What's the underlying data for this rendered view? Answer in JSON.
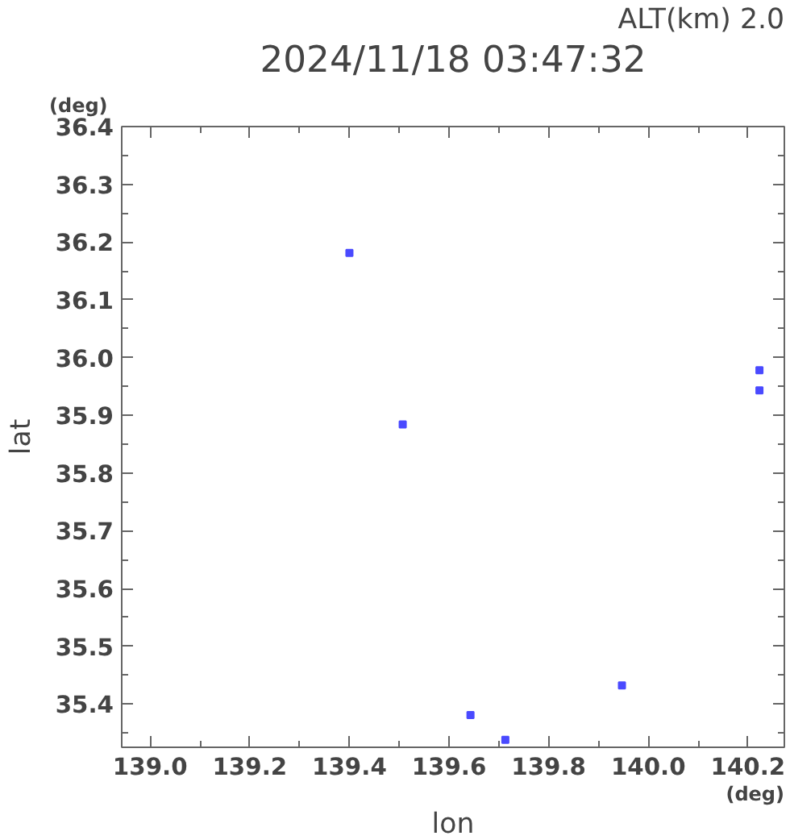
{
  "chart_data": {
    "type": "scatter",
    "title": "2024/11/18 03:47:32",
    "subtitle": "ALT(km) 2.0",
    "xlabel": "lon",
    "ylabel": "lat",
    "annotations": [
      "(deg)",
      "(deg)"
    ],
    "x": [
      139.4,
      139.507,
      140.223,
      140.223,
      139.947,
      139.643,
      139.713
    ],
    "series": [
      {
        "color": "#4a4aff",
        "values": [
          36.181,
          35.884,
          35.978,
          35.943,
          35.432,
          35.381,
          35.338
        ]
      }
    ],
    "marker": "square",
    "grid": false,
    "xlim": [
      138.943,
      140.273
    ],
    "ylim": [
      35.325,
      36.4
    ],
    "xticks": [
      {
        "value": 139.0,
        "label": "139.0"
      },
      {
        "value": 139.1,
        "label": null
      },
      {
        "value": 139.2,
        "label": "139.2"
      },
      {
        "value": 139.3,
        "label": null
      },
      {
        "value": 139.4,
        "label": "139.4"
      },
      {
        "value": 139.5,
        "label": null
      },
      {
        "value": 139.6,
        "label": "139.6"
      },
      {
        "value": 139.7,
        "label": null
      },
      {
        "value": 139.8,
        "label": "139.8"
      },
      {
        "value": 139.9,
        "label": null
      },
      {
        "value": 140.0,
        "label": "140.0"
      },
      {
        "value": 140.1,
        "label": null
      },
      {
        "value": 140.2,
        "label": "140.2"
      }
    ],
    "yticks": [
      {
        "value": 35.35,
        "label": null
      },
      {
        "value": 35.4,
        "label": "35.4"
      },
      {
        "value": 35.45,
        "label": null
      },
      {
        "value": 35.5,
        "label": "35.5"
      },
      {
        "value": 35.55,
        "label": null
      },
      {
        "value": 35.6,
        "label": "35.6"
      },
      {
        "value": 35.65,
        "label": null
      },
      {
        "value": 35.7,
        "label": "35.7"
      },
      {
        "value": 35.75,
        "label": null
      },
      {
        "value": 35.8,
        "label": "35.8"
      },
      {
        "value": 35.85,
        "label": null
      },
      {
        "value": 35.9,
        "label": "35.9"
      },
      {
        "value": 35.95,
        "label": null
      },
      {
        "value": 36.0,
        "label": "36.0"
      },
      {
        "value": 36.05,
        "label": null
      },
      {
        "value": 36.1,
        "label": "36.1"
      },
      {
        "value": 36.15,
        "label": null
      },
      {
        "value": 36.2,
        "label": "36.2"
      },
      {
        "value": 36.25,
        "label": null
      },
      {
        "value": 36.3,
        "label": "36.3"
      },
      {
        "value": 36.35,
        "label": null
      },
      {
        "value": 36.4,
        "label": "36.4"
      }
    ]
  }
}
